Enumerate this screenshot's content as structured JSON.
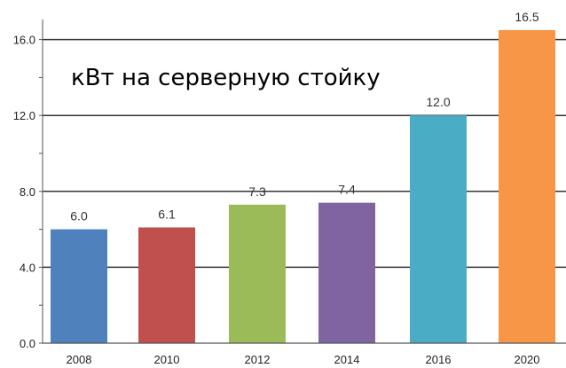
{
  "chart_data": {
    "type": "bar",
    "title": "кВт на серверную стойку",
    "categories": [
      "2008",
      "2010",
      "2012",
      "2014",
      "2016",
      "2020"
    ],
    "values": [
      6.0,
      6.1,
      7.3,
      7.4,
      12.0,
      16.5
    ],
    "data_labels": [
      "6.0",
      "6.1",
      "7.3",
      "7.4",
      "12.0",
      "16.5"
    ],
    "colors": [
      "#4f81bd",
      "#c0504d",
      "#9bbb59",
      "#8064a2",
      "#4bacc6",
      "#f79646"
    ],
    "ylim": [
      0,
      16
    ],
    "yticks": [
      0,
      4,
      8,
      12,
      16
    ],
    "ytick_labels": [
      "0.0",
      "4.0",
      "8.0",
      "12.0",
      "16.0"
    ],
    "grid": true,
    "xlabel": "",
    "ylabel": ""
  }
}
